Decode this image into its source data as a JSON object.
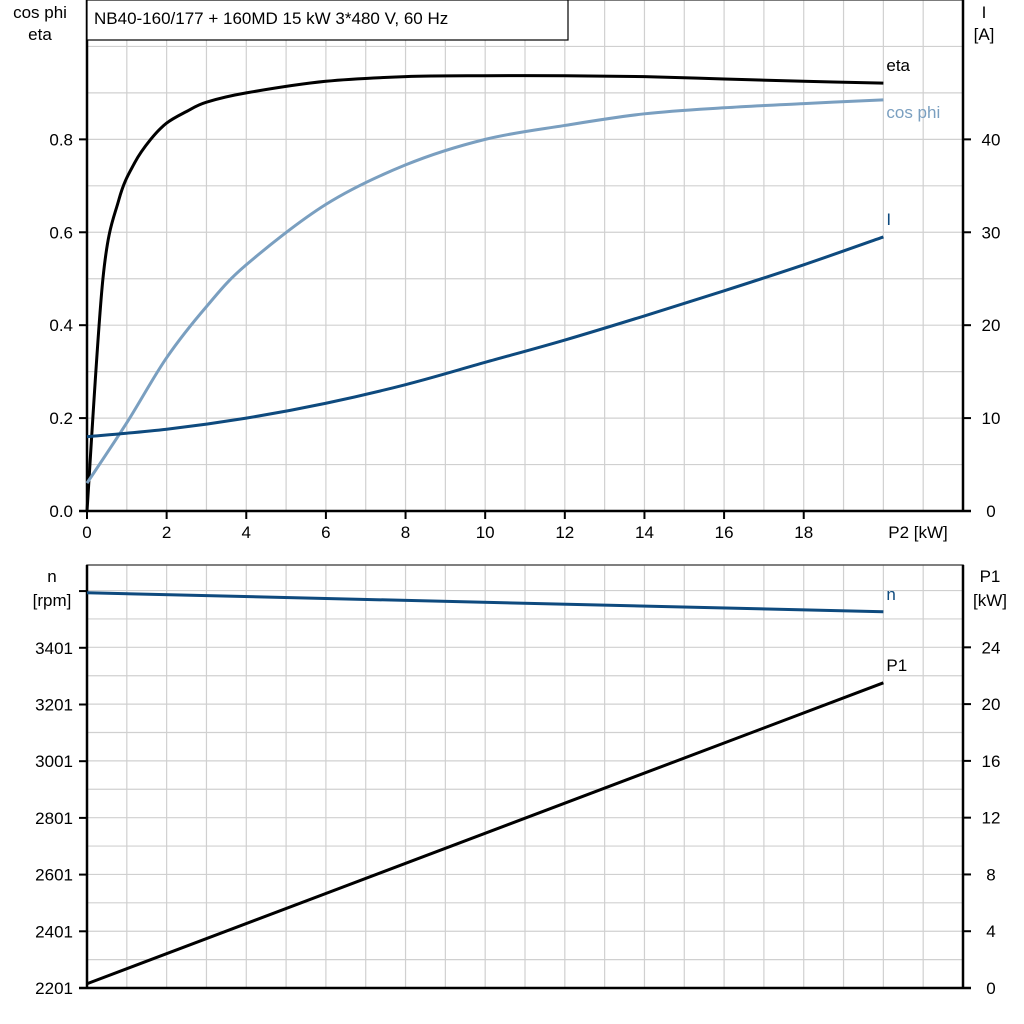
{
  "title": "NB40-160/177 + 160MD   15 kW   3*480 V, 60 Hz",
  "colors": {
    "eta": "#000000",
    "cos_phi": "#7a9fc0",
    "I": "#0e4a7e",
    "n": "#0e4a7e",
    "P1": "#000000"
  },
  "chart_data": [
    {
      "type": "line",
      "ylabel_left": [
        "cos phi",
        "eta"
      ],
      "ylabel_right": [
        "I",
        "[A]"
      ],
      "xlabel": "P2 [kW]",
      "xlim": [
        0,
        22
      ],
      "ylim_left": [
        0,
        1.1
      ],
      "ylim_right": [
        0,
        55
      ],
      "x_ticks": [
        "0",
        "2",
        "4",
        "6",
        "8",
        "10",
        "12",
        "14",
        "16",
        "18"
      ],
      "y_left_ticks": [
        "0.0",
        "0.2",
        "0.4",
        "0.6",
        "0.8"
      ],
      "y_right_ticks": [
        "0",
        "10",
        "20",
        "30",
        "40"
      ],
      "grid": true,
      "series": [
        {
          "name": "eta",
          "axis": "left",
          "x": [
            0,
            0.4,
            0.8,
            1.2,
            1.6,
            2,
            2.5,
            3,
            4,
            6,
            8,
            10,
            12,
            14,
            16,
            18,
            20
          ],
          "y": [
            0,
            0.5,
            0.67,
            0.75,
            0.8,
            0.835,
            0.86,
            0.88,
            0.9,
            0.925,
            0.935,
            0.937,
            0.937,
            0.935,
            0.93,
            0.925,
            0.921
          ]
        },
        {
          "name": "cos phi",
          "axis": "left",
          "x": [
            0,
            1,
            2,
            3,
            4,
            6,
            8,
            10,
            12,
            14,
            16,
            18,
            20
          ],
          "y": [
            0.06,
            0.19,
            0.33,
            0.44,
            0.53,
            0.66,
            0.745,
            0.8,
            0.83,
            0.855,
            0.868,
            0.877,
            0.885
          ]
        },
        {
          "name": "I",
          "axis": "right",
          "x": [
            0,
            2,
            4,
            6,
            8,
            10,
            12,
            14,
            16,
            18,
            20
          ],
          "y": [
            8,
            8.8,
            10,
            11.6,
            13.6,
            16,
            18.4,
            21,
            23.7,
            26.5,
            29.5
          ]
        }
      ]
    },
    {
      "type": "line",
      "ylabel_left": [
        "n",
        "[rpm]"
      ],
      "ylabel_right": [
        "P1",
        "[kW]"
      ],
      "xlim": [
        0,
        22
      ],
      "ylim_left": [
        2201,
        3693
      ],
      "ylim_right": [
        0,
        29.8
      ],
      "y_left_ticks": [
        "2201",
        "2401",
        "2601",
        "2801",
        "3001",
        "3201",
        "3401"
      ],
      "y_right_ticks": [
        "0",
        "4",
        "8",
        "12",
        "16",
        "20",
        "24"
      ],
      "grid": true,
      "series": [
        {
          "name": "n",
          "axis": "left",
          "x": [
            0,
            20
          ],
          "y": [
            3595,
            3528
          ]
        },
        {
          "name": "P1",
          "axis": "right",
          "x": [
            0,
            20
          ],
          "y": [
            0.3,
            21.5
          ]
        }
      ]
    }
  ]
}
